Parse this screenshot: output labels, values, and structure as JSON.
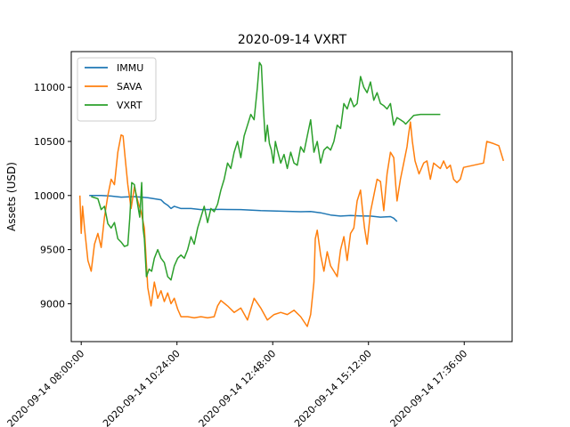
{
  "chart_data": {
    "type": "line",
    "title": "2020-09-14 VXRT",
    "xlabel": "",
    "ylabel": "Assets (USD)",
    "x_ticks": [
      "2020-09-14 08:00:00",
      "2020-09-14 10:24:00",
      "2020-09-14 12:48:00",
      "2020-09-14 15:12:00",
      "2020-09-14 17:36:00"
    ],
    "y_ticks": [
      9000,
      9500,
      10000,
      10500,
      11000
    ],
    "xlim": [
      "2020-09-14 07:45",
      "2020-09-14 18:48"
    ],
    "ylim": [
      8650,
      11330
    ],
    "legend": {
      "position": "top-left"
    },
    "grid": false,
    "series": [
      {
        "name": "IMMU",
        "color": "#1f77b4",
        "points": [
          [
            "08:12",
            10000
          ],
          [
            "08:30",
            10000
          ],
          [
            "08:45",
            9995
          ],
          [
            "09:00",
            9985
          ],
          [
            "09:20",
            9990
          ],
          [
            "09:40",
            9980
          ],
          [
            "10:00",
            9960
          ],
          [
            "10:05",
            9930
          ],
          [
            "10:10",
            9910
          ],
          [
            "10:15",
            9880
          ],
          [
            "10:20",
            9900
          ],
          [
            "10:30",
            9880
          ],
          [
            "10:45",
            9880
          ],
          [
            "11:00",
            9870
          ],
          [
            "11:30",
            9872
          ],
          [
            "12:00",
            9870
          ],
          [
            "12:30",
            9860
          ],
          [
            "13:00",
            9855
          ],
          [
            "13:30",
            9850
          ],
          [
            "13:45",
            9852
          ],
          [
            "14:00",
            9840
          ],
          [
            "14:15",
            9820
          ],
          [
            "14:30",
            9810
          ],
          [
            "14:45",
            9815
          ],
          [
            "15:00",
            9812
          ],
          [
            "15:15",
            9810
          ],
          [
            "15:30",
            9800
          ],
          [
            "15:45",
            9805
          ],
          [
            "15:50",
            9790
          ],
          [
            "15:55",
            9760
          ]
        ]
      },
      {
        "name": "SAVA",
        "color": "#ff7f0e",
        "points": [
          [
            "07:58",
            10000
          ],
          [
            "08:00",
            9650
          ],
          [
            "08:02",
            9900
          ],
          [
            "08:05",
            9700
          ],
          [
            "08:10",
            9400
          ],
          [
            "08:15",
            9300
          ],
          [
            "08:20",
            9550
          ],
          [
            "08:25",
            9650
          ],
          [
            "08:30",
            9520
          ],
          [
            "08:35",
            9800
          ],
          [
            "08:40",
            10000
          ],
          [
            "08:45",
            10150
          ],
          [
            "08:50",
            10100
          ],
          [
            "08:55",
            10400
          ],
          [
            "09:00",
            10560
          ],
          [
            "09:03",
            10550
          ],
          [
            "09:06",
            10350
          ],
          [
            "09:10",
            10100
          ],
          [
            "09:15",
            9880
          ],
          [
            "09:20",
            10080
          ],
          [
            "09:25",
            9950
          ],
          [
            "09:30",
            9850
          ],
          [
            "09:35",
            9700
          ],
          [
            "09:40",
            9150
          ],
          [
            "09:45",
            8980
          ],
          [
            "09:50",
            9200
          ],
          [
            "09:55",
            9050
          ],
          [
            "10:00",
            9120
          ],
          [
            "10:05",
            9020
          ],
          [
            "10:10",
            9100
          ],
          [
            "10:15",
            9000
          ],
          [
            "10:20",
            9050
          ],
          [
            "10:25",
            8950
          ],
          [
            "10:30",
            8880
          ],
          [
            "10:40",
            8880
          ],
          [
            "10:50",
            8870
          ],
          [
            "11:00",
            8880
          ],
          [
            "11:10",
            8870
          ],
          [
            "11:20",
            8880
          ],
          [
            "11:25",
            8980
          ],
          [
            "11:30",
            9030
          ],
          [
            "11:40",
            8980
          ],
          [
            "11:50",
            8920
          ],
          [
            "12:00",
            8960
          ],
          [
            "12:10",
            8850
          ],
          [
            "12:20",
            9050
          ],
          [
            "12:30",
            8960
          ],
          [
            "12:40",
            8850
          ],
          [
            "12:50",
            8900
          ],
          [
            "13:00",
            8920
          ],
          [
            "13:10",
            8900
          ],
          [
            "13:20",
            8940
          ],
          [
            "13:30",
            8880
          ],
          [
            "13:40",
            8790
          ],
          [
            "13:45",
            8900
          ],
          [
            "13:50",
            9200
          ],
          [
            "13:52",
            9600
          ],
          [
            "13:55",
            9680
          ],
          [
            "14:00",
            9450
          ],
          [
            "14:05",
            9300
          ],
          [
            "14:10",
            9480
          ],
          [
            "14:15",
            9350
          ],
          [
            "14:20",
            9300
          ],
          [
            "14:25",
            9250
          ],
          [
            "14:30",
            9500
          ],
          [
            "14:35",
            9620
          ],
          [
            "14:40",
            9400
          ],
          [
            "14:45",
            9650
          ],
          [
            "14:50",
            9700
          ],
          [
            "14:55",
            9950
          ],
          [
            "15:00",
            10050
          ],
          [
            "15:03",
            9870
          ],
          [
            "15:06",
            9700
          ],
          [
            "15:10",
            9550
          ],
          [
            "15:15",
            9850
          ],
          [
            "15:20",
            10000
          ],
          [
            "15:25",
            10150
          ],
          [
            "15:30",
            10130
          ],
          [
            "15:35",
            9860
          ],
          [
            "15:40",
            10200
          ],
          [
            "15:45",
            10400
          ],
          [
            "15:50",
            10350
          ],
          [
            "15:53",
            10100
          ],
          [
            "15:55",
            9950
          ],
          [
            "16:00",
            10150
          ],
          [
            "16:05",
            10300
          ],
          [
            "16:10",
            10450
          ],
          [
            "16:12",
            10550
          ],
          [
            "16:15",
            10680
          ],
          [
            "16:18",
            10500
          ],
          [
            "16:22",
            10320
          ],
          [
            "16:28",
            10200
          ],
          [
            "16:35",
            10300
          ],
          [
            "16:40",
            10320
          ],
          [
            "16:45",
            10150
          ],
          [
            "16:50",
            10300
          ],
          [
            "17:00",
            10250
          ],
          [
            "17:05",
            10320
          ],
          [
            "17:10",
            10250
          ],
          [
            "17:15",
            10280
          ],
          [
            "17:20",
            10150
          ],
          [
            "17:25",
            10120
          ],
          [
            "17:30",
            10150
          ],
          [
            "17:35",
            10260
          ],
          [
            "18:05",
            10300
          ],
          [
            "18:10",
            10500
          ],
          [
            "18:20",
            10480
          ],
          [
            "18:28",
            10460
          ],
          [
            "18:35",
            10320
          ]
        ]
      },
      {
        "name": "VXRT",
        "color": "#2ca02c",
        "points": [
          [
            "08:15",
            9990
          ],
          [
            "08:25",
            9970
          ],
          [
            "08:30",
            9870
          ],
          [
            "08:35",
            9900
          ],
          [
            "08:40",
            9740
          ],
          [
            "08:45",
            9700
          ],
          [
            "08:50",
            9750
          ],
          [
            "08:55",
            9600
          ],
          [
            "09:00",
            9570
          ],
          [
            "09:05",
            9530
          ],
          [
            "09:10",
            9540
          ],
          [
            "09:13",
            9790
          ],
          [
            "09:16",
            10120
          ],
          [
            "09:20",
            10100
          ],
          [
            "09:24",
            9950
          ],
          [
            "09:28",
            9800
          ],
          [
            "09:31",
            10120
          ],
          [
            "09:33",
            9700
          ],
          [
            "09:35",
            9600
          ],
          [
            "09:38",
            9250
          ],
          [
            "09:42",
            9320
          ],
          [
            "09:46",
            9300
          ],
          [
            "09:50",
            9420
          ],
          [
            "09:55",
            9500
          ],
          [
            "10:00",
            9420
          ],
          [
            "10:05",
            9380
          ],
          [
            "10:10",
            9250
          ],
          [
            "10:15",
            9220
          ],
          [
            "10:20",
            9350
          ],
          [
            "10:25",
            9420
          ],
          [
            "10:30",
            9450
          ],
          [
            "10:35",
            9420
          ],
          [
            "10:40",
            9500
          ],
          [
            "10:45",
            9620
          ],
          [
            "10:50",
            9550
          ],
          [
            "10:55",
            9700
          ],
          [
            "11:00",
            9800
          ],
          [
            "11:05",
            9900
          ],
          [
            "11:10",
            9750
          ],
          [
            "11:15",
            9880
          ],
          [
            "11:20",
            9850
          ],
          [
            "11:25",
            9920
          ],
          [
            "11:30",
            10050
          ],
          [
            "11:35",
            10150
          ],
          [
            "11:40",
            10300
          ],
          [
            "11:45",
            10250
          ],
          [
            "11:50",
            10400
          ],
          [
            "11:55",
            10500
          ],
          [
            "12:00",
            10350
          ],
          [
            "12:05",
            10550
          ],
          [
            "12:10",
            10650
          ],
          [
            "12:15",
            10750
          ],
          [
            "12:20",
            10700
          ],
          [
            "12:25",
            11000
          ],
          [
            "12:28",
            11230
          ],
          [
            "12:31",
            11200
          ],
          [
            "12:34",
            10800
          ],
          [
            "12:37",
            10500
          ],
          [
            "12:40",
            10650
          ],
          [
            "12:43",
            10480
          ],
          [
            "12:46",
            10420
          ],
          [
            "12:49",
            10300
          ],
          [
            "12:52",
            10500
          ],
          [
            "12:55",
            10420
          ],
          [
            "13:00",
            10300
          ],
          [
            "13:05",
            10380
          ],
          [
            "13:10",
            10250
          ],
          [
            "13:15",
            10400
          ],
          [
            "13:20",
            10300
          ],
          [
            "13:25",
            10280
          ],
          [
            "13:30",
            10450
          ],
          [
            "13:35",
            10400
          ],
          [
            "13:40",
            10550
          ],
          [
            "13:45",
            10700
          ],
          [
            "13:50",
            10400
          ],
          [
            "13:55",
            10500
          ],
          [
            "14:00",
            10300
          ],
          [
            "14:05",
            10420
          ],
          [
            "14:10",
            10450
          ],
          [
            "14:15",
            10420
          ],
          [
            "14:20",
            10500
          ],
          [
            "14:25",
            10650
          ],
          [
            "14:30",
            10620
          ],
          [
            "14:35",
            10850
          ],
          [
            "14:40",
            10800
          ],
          [
            "14:45",
            10900
          ],
          [
            "14:50",
            10820
          ],
          [
            "14:55",
            10850
          ],
          [
            "15:00",
            11100
          ],
          [
            "15:05",
            11000
          ],
          [
            "15:10",
            10950
          ],
          [
            "15:15",
            11050
          ],
          [
            "15:20",
            10880
          ],
          [
            "15:25",
            10950
          ],
          [
            "15:30",
            10850
          ],
          [
            "15:35",
            10830
          ],
          [
            "15:40",
            10800
          ],
          [
            "15:45",
            10850
          ],
          [
            "15:50",
            10650
          ],
          [
            "15:55",
            10720
          ],
          [
            "16:00",
            10700
          ],
          [
            "16:05",
            10680
          ],
          [
            "16:08",
            10660
          ],
          [
            "16:20",
            10740
          ],
          [
            "16:30",
            10750
          ],
          [
            "17:00",
            10750
          ]
        ]
      }
    ]
  }
}
